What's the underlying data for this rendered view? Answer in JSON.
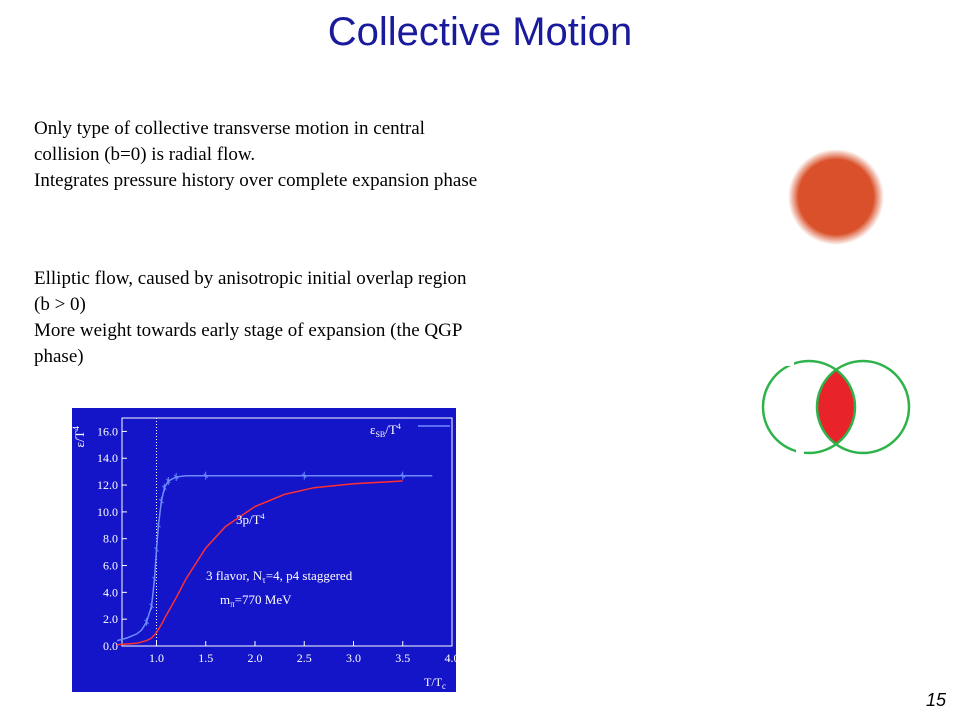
{
  "slide": {
    "title": "Collective Motion",
    "page_number": "15"
  },
  "paragraphs": {
    "radial": [
      "Only type of collective transverse motion in central",
      "collision (b=0) is radial flow.",
      "Integrates pressure history over complete expansion phase"
    ],
    "elliptic": [
      "Elliptic flow, caused by anisotropic initial overlap region",
      "(b > 0)",
      "More weight towards early stage of expansion (the QGP",
      "phase)"
    ]
  },
  "colors": {
    "title": "#1a1a9c",
    "plot_bg": "#1414c8",
    "radial_fill": "#d9502a",
    "overlap_red": "#e8242a",
    "nucleus_green": "#2db34a",
    "energy_curve": "#6e8cff",
    "pressure_curve": "#ff3030"
  },
  "chart_data": {
    "type": "line",
    "xlabel": "T/T",
    "xlabel_sub": "c",
    "ylabel": "ε/T",
    "ylabel_sup": "4",
    "xlim": [
      0.6,
      4.0
    ],
    "ylim": [
      0,
      17
    ],
    "xticks": [
      "1.0",
      "1.5",
      "2.0",
      "2.5",
      "3.0",
      "3.5",
      "4.0"
    ],
    "yticks": [
      "0.0",
      "2.0",
      "4.0",
      "6.0",
      "8.0",
      "10.0",
      "12.0",
      "14.0",
      "16.0"
    ],
    "vline_x": 1.0,
    "legend": {
      "label": "ε",
      "sub": "SB",
      "rest": "/T",
      "sup": "4"
    },
    "series": [
      {
        "name": "ε/T⁴",
        "x": [
          0.6,
          0.7,
          0.8,
          0.85,
          0.9,
          0.95,
          0.98,
          1.0,
          1.02,
          1.05,
          1.08,
          1.12,
          1.2,
          1.3,
          1.5,
          2.0,
          2.5,
          3.0,
          3.5,
          3.8
        ],
        "y": [
          0.4,
          0.6,
          0.9,
          1.2,
          1.8,
          3.0,
          5.0,
          7.2,
          9.0,
          10.8,
          11.8,
          12.3,
          12.6,
          12.7,
          12.7,
          12.7,
          12.7,
          12.7,
          12.7,
          12.7
        ]
      },
      {
        "name": "3p/T⁴",
        "x": [
          0.6,
          0.8,
          0.9,
          0.95,
          1.0,
          1.05,
          1.1,
          1.2,
          1.3,
          1.5,
          1.7,
          2.0,
          2.3,
          2.6,
          3.0,
          3.5
        ],
        "y": [
          0.1,
          0.2,
          0.4,
          0.6,
          1.0,
          1.6,
          2.3,
          3.6,
          5.0,
          7.3,
          8.9,
          10.4,
          11.3,
          11.8,
          12.1,
          12.3
        ]
      }
    ],
    "curve_labels": {
      "pressure": "3p/T",
      "pressure_sup": "4"
    },
    "annotations": {
      "line1a": "3 flavor, N",
      "line1sub": "τ",
      "line1b": "=4, p4 staggered",
      "line2a": "m",
      "line2sub": "π",
      "line2b": "=770 MeV"
    }
  }
}
